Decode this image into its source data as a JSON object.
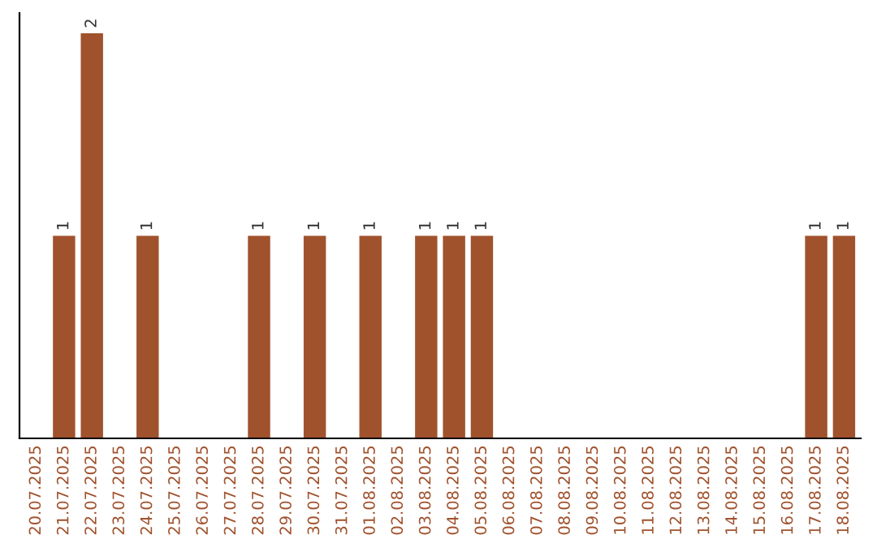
{
  "chart_data": {
    "type": "bar",
    "categories": [
      "20.07.2025",
      "21.07.2025",
      "22.07.2025",
      "23.07.2025",
      "24.07.2025",
      "25.07.2025",
      "26.07.2025",
      "27.07.2025",
      "28.07.2025",
      "29.07.2025",
      "30.07.2025",
      "31.07.2025",
      "01.08.2025",
      "02.08.2025",
      "03.08.2025",
      "04.08.2025",
      "05.08.2025",
      "06.08.2025",
      "07.08.2025",
      "08.08.2025",
      "09.08.2025",
      "10.08.2025",
      "11.08.2025",
      "12.08.2025",
      "13.08.2025",
      "14.08.2025",
      "15.08.2025",
      "16.08.2025",
      "17.08.2025",
      "18.08.2025"
    ],
    "values": [
      0,
      1,
      2,
      0,
      1,
      0,
      0,
      0,
      1,
      0,
      1,
      0,
      1,
      0,
      1,
      1,
      1,
      0,
      0,
      0,
      0,
      0,
      0,
      0,
      0,
      0,
      0,
      0,
      1,
      1
    ],
    "color": "#a0522d",
    "ylim": [
      0,
      2.1
    ],
    "value_labels": [
      null,
      "1",
      "2",
      null,
      "1",
      null,
      null,
      null,
      "1",
      null,
      "1",
      null,
      "1",
      null,
      "1",
      "1",
      "1",
      null,
      null,
      null,
      null,
      null,
      null,
      null,
      null,
      null,
      null,
      null,
      "1",
      "1"
    ],
    "tick_labels": "x",
    "grid": false,
    "legend": false
  }
}
